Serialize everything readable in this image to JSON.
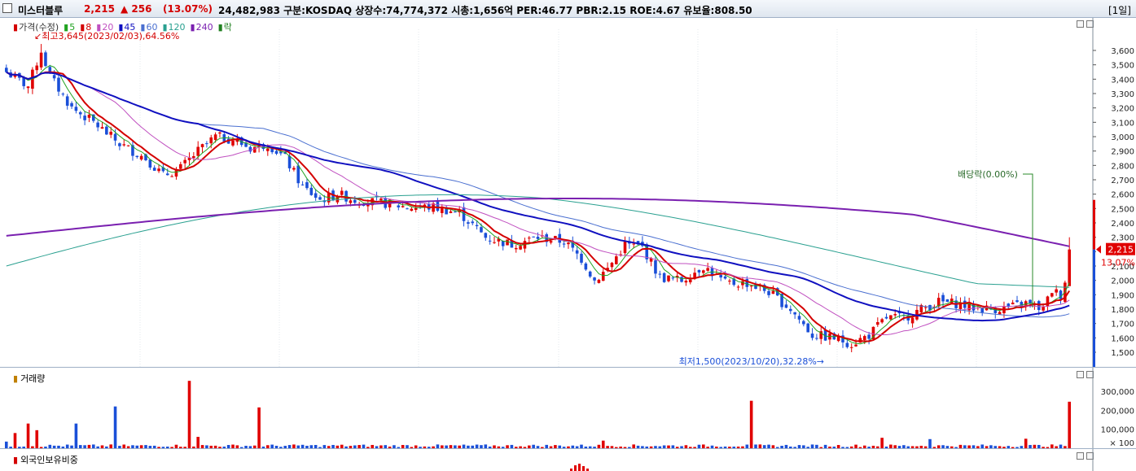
{
  "header": {
    "stock_name": "미스터블루",
    "price": "2,215",
    "change": "▲ 256",
    "change_pct": "(13.07%)",
    "info": "24,482,983  구분:KOSDAQ 상장수:74,774,372 시총:1,656억 PER:46.77 PBR:2.15 ROE:4.67 유보율:808.50",
    "period": "[1일]"
  },
  "price_panel": {
    "legend": [
      {
        "label": "가격(수정)",
        "color": "#d40000"
      },
      {
        "label": "5",
        "color": "#21a321"
      },
      {
        "label": "8",
        "color": "#d40000"
      },
      {
        "label": "20",
        "color": "#c050c0"
      },
      {
        "label": "45",
        "color": "#1010c0"
      },
      {
        "label": "60",
        "color": "#4a6fd0"
      },
      {
        "label": "120",
        "color": "#2aa090"
      },
      {
        "label": "240",
        "color": "#7a20b0"
      },
      {
        "label": "락",
        "color": "#208020"
      }
    ],
    "high_annotation": "최고3,645(2023/02/03),64.56%",
    "low_annotation": "최저1,500(2023/10/20),32.28%",
    "dividend_annotation": "배당락(0.00%)",
    "current_price_tag": "2,215",
    "current_pct_tag": "13.07%",
    "y_labels": [
      "3,600",
      "3,500",
      "3,400",
      "3,300",
      "3,200",
      "3,100",
      "3,000",
      "2,900",
      "2,800",
      "2,700",
      "2,600",
      "2,500",
      "2,400",
      "2,300",
      "2,200",
      "2,100",
      "2,000",
      "1,900",
      "1,800",
      "1,700",
      "1,600",
      "1,500"
    ]
  },
  "volume_panel": {
    "title": "거래량",
    "y_labels": [
      "300,000",
      "200,000",
      "100,000"
    ],
    "unit": "× 100"
  },
  "foreign_panel": {
    "title": "외국인보유비중"
  }
}
